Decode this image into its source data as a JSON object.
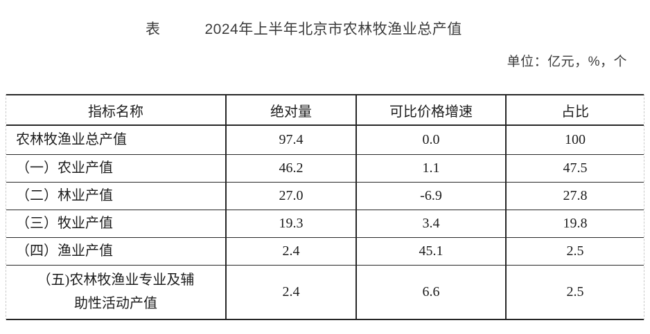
{
  "document": {
    "table_label": "表",
    "title": "2024年上半年北京市农林牧渔业总产值",
    "unit_note": "单位：亿元，%，个"
  },
  "table": {
    "headers": [
      "指标名称",
      "绝对量",
      "可比价格增速",
      "占比"
    ],
    "rows": [
      {
        "indicator": "农林牧渔业总产值",
        "absolute": "97.4",
        "growth": "0.0",
        "share": "100"
      },
      {
        "indicator": "（一）农业产值",
        "absolute": "46.2",
        "growth": "1.1",
        "share": "47.5"
      },
      {
        "indicator": "（二）林业产值",
        "absolute": "27.0",
        "growth": "-6.9",
        "share": "27.8"
      },
      {
        "indicator": "（三）牧业产值",
        "absolute": "19.3",
        "growth": "3.4",
        "share": "19.8"
      },
      {
        "indicator": "（四）渔业产值",
        "absolute": "2.4",
        "growth": "45.1",
        "share": "2.5"
      },
      {
        "indicator": "（五)农林牧渔业专业及辅\n助性活动产值",
        "absolute": "2.4",
        "growth": "6.6",
        "share": "2.5"
      }
    ]
  },
  "colors": {
    "border_solid": "#262626",
    "border_dashed": "#c9c9c9",
    "table_text": "#1c1c1c",
    "heading_text": "#3b3b3b",
    "background": "#ffffff"
  }
}
